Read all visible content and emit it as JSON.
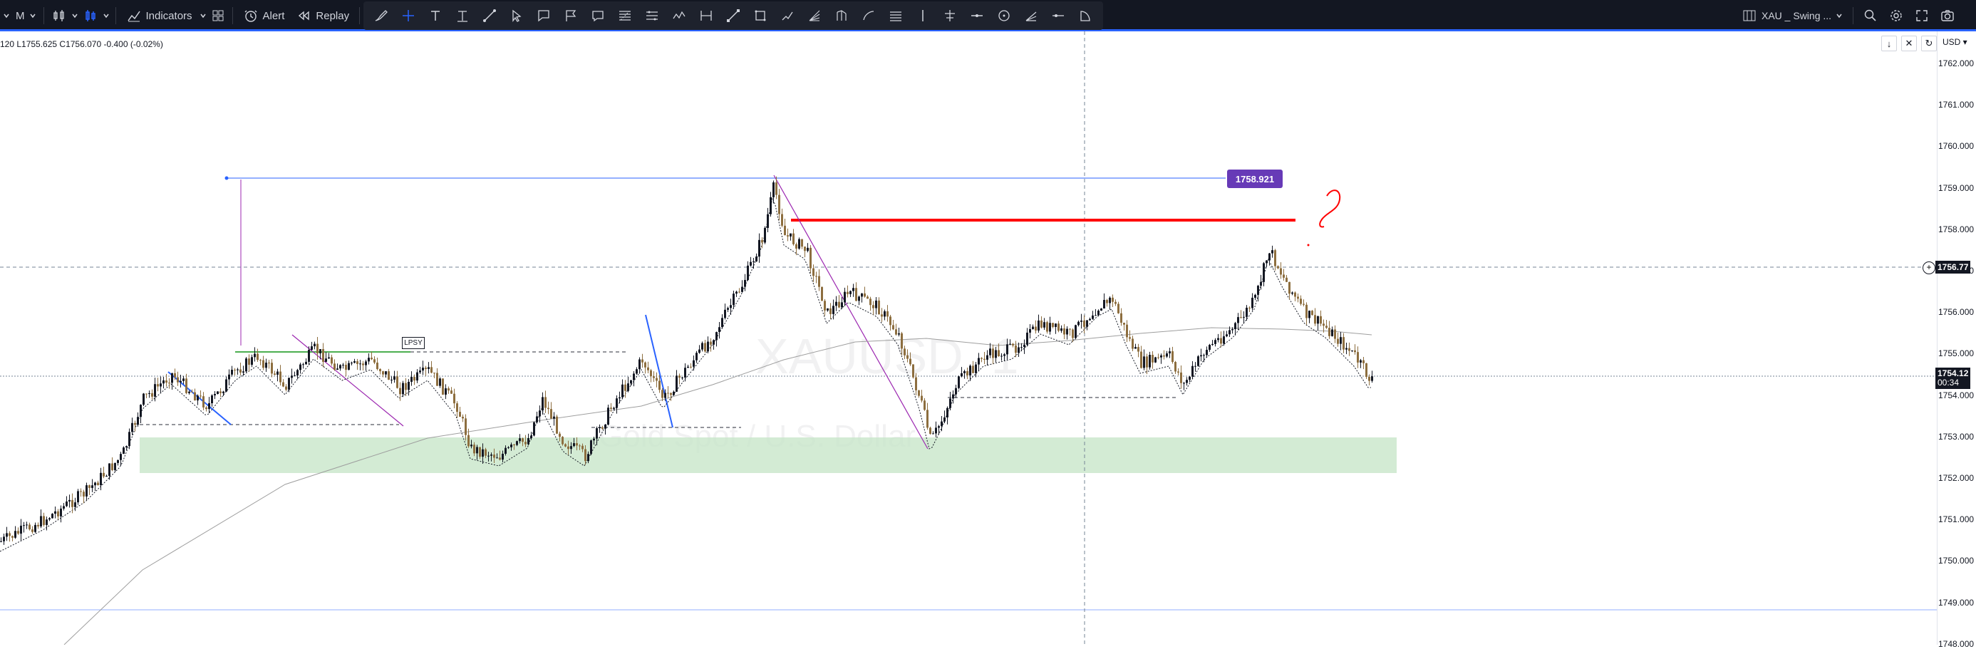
{
  "toolbar": {
    "timeframe_short": "M",
    "indicators_label": "Indicators",
    "alert_label": "Alert",
    "replay_label": "Replay",
    "layout_name": "XAU _ Swing ..."
  },
  "ohlc": {
    "text": "120  L1755.625  C1756.070  -0.400 (-0.02%)"
  },
  "axis": {
    "currency": "USD",
    "ticks": [
      "1762.000",
      "1761.000",
      "1760.000",
      "1759.000",
      "1758.000",
      "1757.000",
      "1756.000",
      "1755.000",
      "1754.000",
      "1753.000",
      "1752.000",
      "1751.000",
      "1750.000",
      "1749.000",
      "1748.000"
    ],
    "crosshair_price": "1756.77",
    "last_price": "1754.12",
    "countdown": "00:34"
  },
  "annotations": {
    "price_label": "1758.921",
    "lpsy_label": "LPSY"
  },
  "watermark": {
    "symbol": "XAUUSD, 1",
    "description": "Gold Spot / U.S. Dollar"
  },
  "colors": {
    "toolbar_bg": "#131722",
    "accent": "#2962ff",
    "bull_candle": "#131722",
    "bear_candle": "#8d6e3f",
    "resistance_line": "#ff0000",
    "demand_zone": "#c8e6c9",
    "price_label_bg": "#673ab7"
  },
  "icons": [
    "candles-icon",
    "indicators-icon",
    "templates-icon",
    "alert-icon",
    "replay-icon",
    "undo-icon",
    "brush-icon",
    "crosshair-icon",
    "text-icon",
    "measure-icon",
    "trendline-icon",
    "pointer-icon",
    "search-icon",
    "settings-icon",
    "fullscreen-icon",
    "camera-icon"
  ]
}
